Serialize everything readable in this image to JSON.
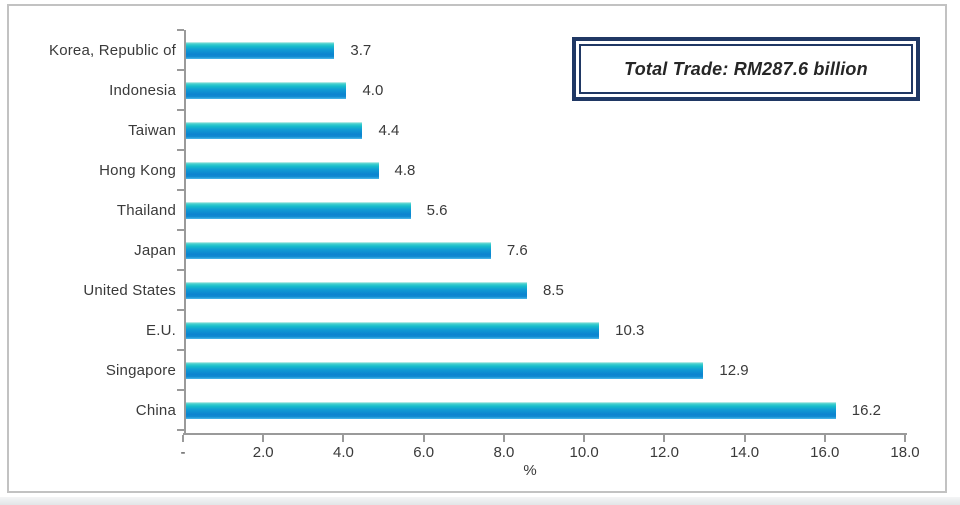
{
  "chart_data": {
    "type": "bar",
    "orientation": "horizontal",
    "categories": [
      "Korea, Republic of",
      "Indonesia",
      "Taiwan",
      "Hong Kong",
      "Thailand",
      "Japan",
      "United States",
      "E.U.",
      "Singapore",
      "China"
    ],
    "values": [
      3.7,
      4.0,
      4.4,
      4.8,
      5.6,
      7.6,
      8.5,
      10.3,
      12.9,
      16.2
    ],
    "value_labels": [
      "3.7",
      "4.0",
      "4.4",
      "4.8",
      "5.6",
      "7.6",
      "8.5",
      "10.3",
      "12.9",
      "16.2"
    ],
    "xlabel": "%",
    "xlim": [
      0,
      18
    ],
    "xtick_step": 2,
    "xtick_labels": [
      "-",
      "2.0",
      "4.0",
      "6.0",
      "8.0",
      "10.0",
      "12.0",
      "14.0",
      "16.0",
      "18.0"
    ],
    "grid": false,
    "legend": null,
    "bar_gradient": [
      "#d6f3ef 0%",
      "#49d0ce 10%",
      "#16bccb 25%",
      "#109bd4 45%",
      "#0c84d0 72%",
      "#0f8ad2 86%",
      "#4db9e9 100%"
    ]
  },
  "annotation": {
    "text": "Total Trade: RM287.6 billion"
  },
  "colors": {
    "axis": "#9a9a9a",
    "text": "#3a3a3a",
    "frame_border": "#c2c2c2",
    "annotation_border": "#203864"
  }
}
